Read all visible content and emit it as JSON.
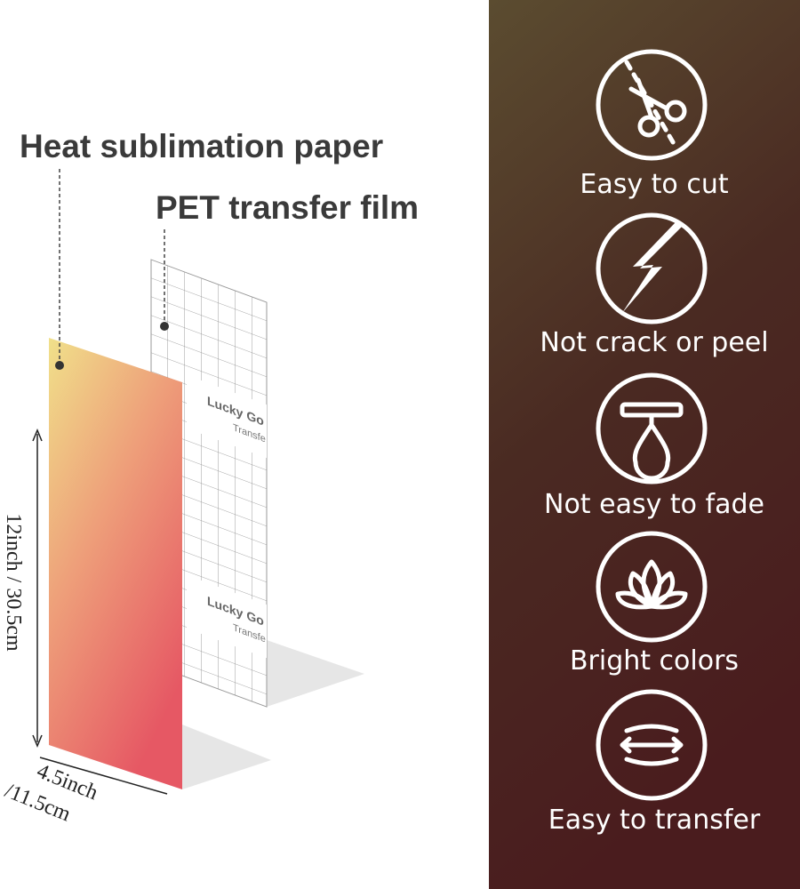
{
  "callouts": {
    "paper": "Heat sublimation paper",
    "film": "PET transfer film"
  },
  "dimensions": {
    "height": "12inch / 30.5cm",
    "width_inch": "4.5inch",
    "width_cm": "/11.5cm"
  },
  "film_print": {
    "brand": "Lucky Go",
    "sub": "Transfe"
  },
  "features": [
    "Easy to cut",
    "Not crack or peel",
    "Not easy to fade",
    "Bright colors",
    "Easy to transfer"
  ]
}
